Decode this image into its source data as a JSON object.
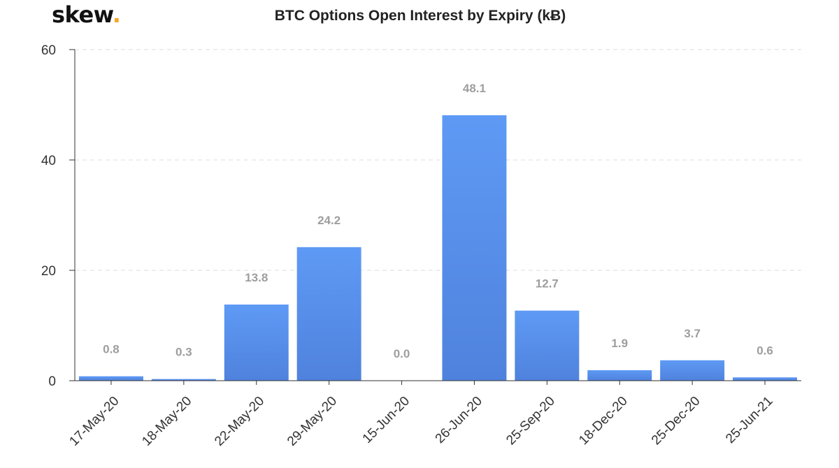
{
  "brand": {
    "name": "skew",
    "dot": "."
  },
  "chart_data": {
    "type": "bar",
    "title": "BTC Options Open Interest by Expiry (kɃ)",
    "xlabel": "",
    "ylabel": "",
    "categories": [
      "17-May-20",
      "18-May-20",
      "22-May-20",
      "29-May-20",
      "15-Jun-20",
      "26-Jun-20",
      "25-Sep-20",
      "18-Dec-20",
      "25-Dec-20",
      "25-Jun-21"
    ],
    "values": [
      0.8,
      0.3,
      13.8,
      24.2,
      0.0,
      48.1,
      12.7,
      1.9,
      3.7,
      0.6
    ],
    "data_labels": [
      "0.8",
      "0.3",
      "13.8",
      "24.2",
      "0.0",
      "48.1",
      "12.7",
      "1.9",
      "3.7",
      "0.6"
    ],
    "ylim": [
      0,
      60
    ],
    "yticks": [
      0,
      20,
      40,
      60
    ],
    "grid": true,
    "legend": "none",
    "colors": {
      "bar_top": "#5e9af5",
      "bar_bottom": "#4f82dd",
      "grid": "#dddddd",
      "axis": "#333333",
      "label": "#9e9e9e"
    }
  }
}
